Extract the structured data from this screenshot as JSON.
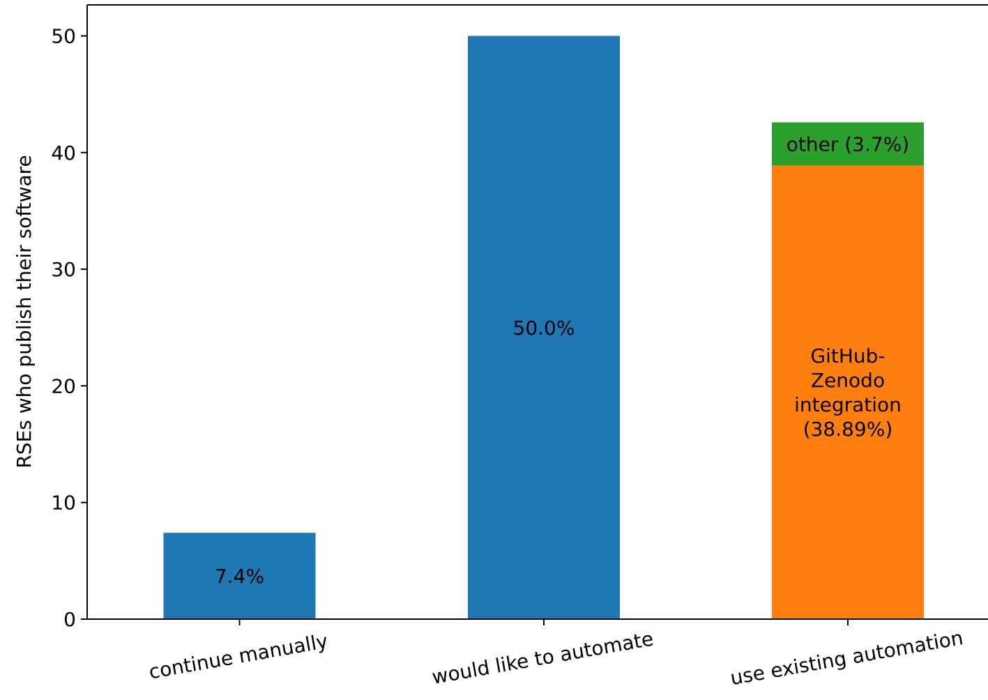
{
  "chart_data": {
    "type": "bar",
    "stacked": true,
    "title": "",
    "xlabel": "",
    "ylabel": "RSEs who publish their software",
    "ylim": [
      0,
      52.5
    ],
    "yticks": [
      0,
      10,
      20,
      30,
      40,
      50
    ],
    "grid": false,
    "categories": [
      "continue manually",
      "would like to automate",
      "use existing automation"
    ],
    "segments": [
      {
        "category": "continue manually",
        "base": 0,
        "value": 7.4,
        "color": "#1f77b4",
        "label_lines": [
          "7.4%"
        ]
      },
      {
        "category": "would like to automate",
        "base": 0,
        "value": 50.0,
        "color": "#1f77b4",
        "label_lines": [
          "50.0%"
        ]
      },
      {
        "category": "use existing automation",
        "base": 0,
        "value": 38.89,
        "color": "#ff7f0e",
        "label_lines": [
          "GitHub-",
          "Zenodo",
          "integration",
          "(38.89%)"
        ]
      },
      {
        "category": "use existing automation",
        "base": 38.89,
        "value": 3.7,
        "color": "#2ca02c",
        "label_lines": [
          "other (3.7%)"
        ]
      }
    ]
  }
}
